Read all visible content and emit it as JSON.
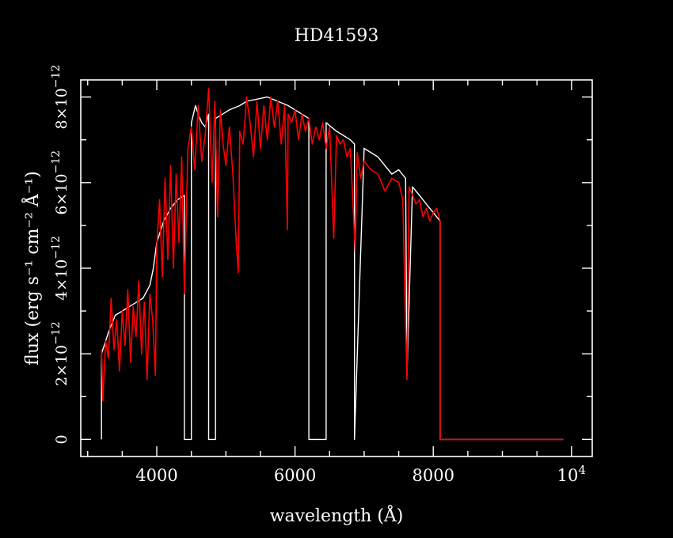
{
  "chart_data": {
    "type": "line",
    "title": "HD41593",
    "xlabel": "wavelength (Å)",
    "ylabel": "flux (erg s⁻¹ cm⁻² Å⁻¹)",
    "xlim": [
      2900,
      10300
    ],
    "ylim": [
      -4e-13,
      8.4e-12
    ],
    "x_ticks": [
      {
        "value": 4000,
        "label": "4000"
      },
      {
        "value": 6000,
        "label": "6000"
      },
      {
        "value": 8000,
        "label": "8000"
      },
      {
        "value": 10000,
        "label": "10",
        "exp": "4"
      }
    ],
    "y_ticks": [
      {
        "value": 0,
        "label": "0"
      },
      {
        "value": 2e-12,
        "label": "2×10",
        "exp": "−12"
      },
      {
        "value": 4e-12,
        "label": "4×10",
        "exp": "−12"
      },
      {
        "value": 6e-12,
        "label": "6×10",
        "exp": "−12"
      },
      {
        "value": 8e-12,
        "label": "8×10",
        "exp": "−12"
      }
    ],
    "colors": {
      "observed": "#ffffff",
      "model": "#ff0000",
      "background": "#000000"
    },
    "series": [
      {
        "color": "#ffffff",
        "x": [
          3200,
          3200,
          3300,
          3400,
          3500,
          3600,
          3700,
          3800,
          3900,
          3950,
          4000,
          4100,
          4200,
          4300,
          4400,
          4400,
          4450,
          4500,
          4500,
          4560,
          4600,
          4650,
          4700,
          4750,
          4750,
          4850,
          4850,
          4950,
          5050,
          5200,
          5300,
          5450,
          5600,
          5750,
          5900,
          6000,
          6100,
          6200,
          6200,
          6300,
          6450,
          6450,
          6600,
          6800,
          6860,
          6860,
          7000,
          7200,
          7400,
          7500,
          7600,
          7620,
          7700,
          7800,
          7900,
          8000,
          8100,
          8100,
          9880
        ],
        "y": [
          0,
          2e-12,
          2.5e-12,
          2.9e-12,
          3e-12,
          3.1e-12,
          3.2e-12,
          3.3e-12,
          3.6e-12,
          4e-12,
          4.6e-12,
          5.1e-12,
          5.4e-12,
          5.6e-12,
          5.7e-12,
          0,
          0,
          0,
          7.4e-12,
          7.8e-12,
          7.6e-12,
          7.4e-12,
          7.3e-12,
          7.6e-12,
          0,
          0,
          7.5e-12,
          7.6e-12,
          7.7e-12,
          7.8e-12,
          7.9e-12,
          7.95e-12,
          8e-12,
          7.9e-12,
          7.8e-12,
          7.7e-12,
          7.6e-12,
          7.5e-12,
          0,
          0,
          0,
          7.4e-12,
          7.2e-12,
          7e-12,
          6.9e-12,
          0,
          6.8e-12,
          6.6e-12,
          6.2e-12,
          6.3e-12,
          6.1e-12,
          1.5e-12,
          5.9e-12,
          5.7e-12,
          5.5e-12,
          5.3e-12,
          5.1e-12,
          0,
          0
        ]
      },
      {
        "color": "#ff0000",
        "x": [
          3200,
          3220,
          3260,
          3300,
          3340,
          3380,
          3420,
          3460,
          3500,
          3540,
          3580,
          3620,
          3660,
          3700,
          3740,
          3780,
          3820,
          3860,
          3900,
          3940,
          3980,
          4000,
          4040,
          4080,
          4120,
          4160,
          4200,
          4240,
          4280,
          4320,
          4360,
          4400,
          4450,
          4500,
          4550,
          4600,
          4650,
          4700,
          4750,
          4800,
          4840,
          4880,
          4920,
          4960,
          5000,
          5050,
          5100,
          5150,
          5180,
          5200,
          5250,
          5300,
          5350,
          5400,
          5450,
          5500,
          5550,
          5600,
          5650,
          5700,
          5750,
          5800,
          5850,
          5890,
          5900,
          5950,
          6000,
          6050,
          6100,
          6150,
          6200,
          6250,
          6300,
          6350,
          6400,
          6450,
          6500,
          6560,
          6600,
          6650,
          6700,
          6750,
          6800,
          6870,
          6900,
          6950,
          7000,
          7100,
          7200,
          7300,
          7400,
          7500,
          7560,
          7600,
          7620,
          7650,
          7700,
          7750,
          7800,
          7850,
          7900,
          7950,
          8000,
          8050,
          8100,
          8100,
          8500,
          9000,
          9500,
          9880
        ],
        "y": [
          2.1e-12,
          9e-13,
          2.3e-12,
          1.9e-12,
          3.3e-12,
          2.1e-12,
          2.8e-12,
          1.6e-12,
          3e-12,
          2.2e-12,
          3.5e-12,
          1.8e-12,
          3.1e-12,
          2.4e-12,
          3.7e-12,
          2e-12,
          3.2e-12,
          1.4e-12,
          3.4e-12,
          2.8e-12,
          1.5e-12,
          4.5e-12,
          5.6e-12,
          3.8e-12,
          6.1e-12,
          4.2e-12,
          6.4e-12,
          4e-12,
          6.2e-12,
          4.6e-12,
          6.6e-12,
          3.4e-12,
          6.8e-12,
          7.3e-12,
          6.3e-12,
          7.8e-12,
          6.5e-12,
          7.1e-12,
          8.2e-12,
          6e-12,
          7.9e-12,
          5.2e-12,
          7.7e-12,
          6.9e-12,
          6.4e-12,
          7.3e-12,
          6.2e-12,
          4.6e-12,
          3.9e-12,
          7.2e-12,
          6.9e-12,
          8e-12,
          7.4e-12,
          6.6e-12,
          7.9e-12,
          6.8e-12,
          7.8e-12,
          7e-12,
          8e-12,
          7.3e-12,
          7.9e-12,
          6.9e-12,
          7.8e-12,
          4.9e-12,
          7.6e-12,
          7.4e-12,
          7.7e-12,
          7e-12,
          7.6e-12,
          7.2e-12,
          7.5e-12,
          6.9e-12,
          7.3e-12,
          7e-12,
          7.4e-12,
          6.8e-12,
          7.3e-12,
          4.7e-12,
          7.1e-12,
          6.9e-12,
          7e-12,
          6.6e-12,
          6.8e-12,
          4.4e-12,
          6.7e-12,
          6.1e-12,
          6.5e-12,
          6.3e-12,
          6.2e-12,
          5.8e-12,
          6.1e-12,
          6e-12,
          5.6e-12,
          2.6e-12,
          1.4e-12,
          5.9e-12,
          5.7e-12,
          5.5e-12,
          5.6e-12,
          5.2e-12,
          5.4e-12,
          5.1e-12,
          5.3e-12,
          5.4e-12,
          5.1e-12,
          0,
          0,
          0,
          0,
          0
        ]
      }
    ],
    "grid": false,
    "legend": "none"
  }
}
